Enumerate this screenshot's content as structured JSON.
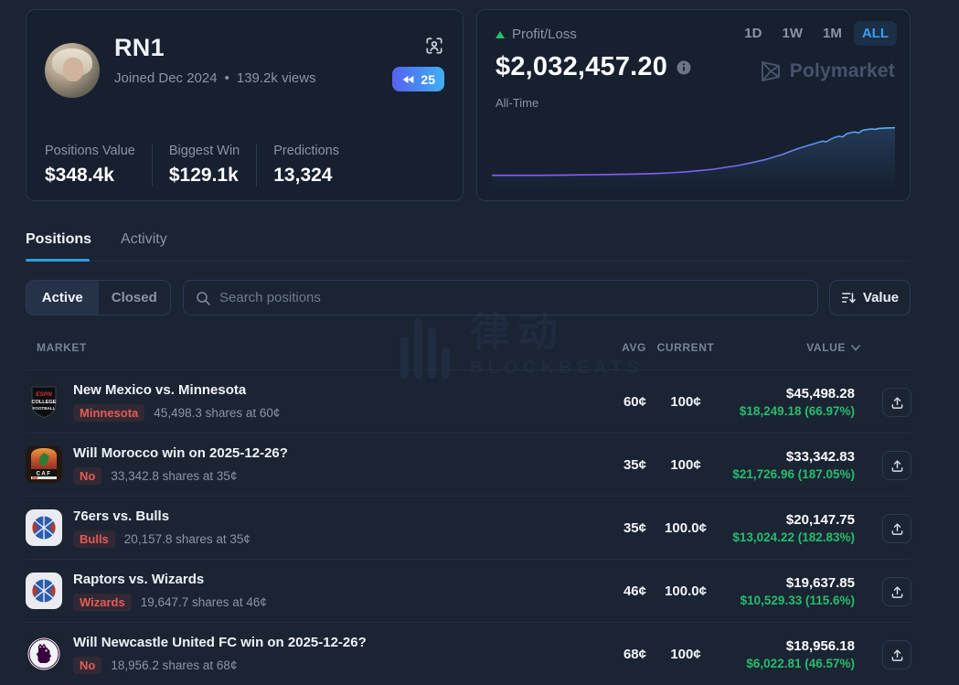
{
  "profile": {
    "name": "RN1",
    "joined": "Joined Dec 2024",
    "separator": "•",
    "views": "139.2k views",
    "badge_count": "25",
    "stats": [
      {
        "label": "Positions Value",
        "value": "$348.4k"
      },
      {
        "label": "Biggest Win",
        "value": "$129.1k"
      },
      {
        "label": "Predictions",
        "value": "13,324"
      }
    ]
  },
  "pnl": {
    "label": "Profit/Loss",
    "amount": "$2,032,457.20",
    "period_label": "All-Time",
    "ranges": [
      "1D",
      "1W",
      "1M",
      "ALL"
    ],
    "active_range": "ALL",
    "brand": "Polymarket"
  },
  "chart_data": {
    "type": "line",
    "title": "Profit/Loss All-Time",
    "xlabel": "",
    "ylabel": "",
    "axes_hidden": true,
    "end_value": "$2,032,457.20",
    "line_gradient": [
      "#8b5cf6",
      "#55b4f0"
    ],
    "points": [
      [
        0,
        47
      ],
      [
        6,
        47
      ],
      [
        12,
        47
      ],
      [
        18,
        46.8
      ],
      [
        24,
        46.6
      ],
      [
        30,
        46.3
      ],
      [
        36,
        46
      ],
      [
        40,
        45.6
      ],
      [
        44,
        45
      ],
      [
        48,
        44.2
      ],
      [
        52,
        43
      ],
      [
        55,
        42
      ],
      [
        58,
        40.5
      ],
      [
        61,
        39
      ],
      [
        64,
        37
      ],
      [
        66,
        35.5
      ],
      [
        68,
        34
      ],
      [
        70,
        32
      ],
      [
        72,
        30
      ],
      [
        74,
        27.5
      ],
      [
        76,
        25
      ],
      [
        78,
        23
      ],
      [
        80,
        21
      ],
      [
        81,
        20
      ],
      [
        82,
        19
      ],
      [
        83,
        19.5
      ],
      [
        84,
        17.5
      ],
      [
        85,
        16
      ],
      [
        86,
        15
      ],
      [
        87,
        15.5
      ],
      [
        88,
        13
      ],
      [
        89,
        12
      ],
      [
        90,
        11.5
      ],
      [
        91,
        12.2
      ],
      [
        92,
        10
      ],
      [
        93,
        9.5
      ],
      [
        94,
        9
      ],
      [
        95,
        9.3
      ],
      [
        96,
        8.6
      ],
      [
        97,
        8.4
      ],
      [
        98,
        8.2
      ],
      [
        99,
        8.1
      ],
      [
        100,
        8
      ]
    ]
  },
  "tabs": {
    "positions": "Positions",
    "activity": "Activity"
  },
  "filters": {
    "active": "Active",
    "closed": "Closed",
    "search_placeholder": "Search positions",
    "sort_label": "Value"
  },
  "table": {
    "headers": {
      "market": "MARKET",
      "avg": "AVG",
      "current": "CURRENT",
      "value": "VALUE"
    }
  },
  "watermark": {
    "cjk": "律动",
    "latin": "BLOCKBEATS"
  },
  "icon_art": {
    "espn": {
      "line1": "ESPN",
      "line2": "COLLEGE",
      "line3": "FOOTBALL"
    },
    "caf": {
      "label": "CAF"
    }
  },
  "rows": [
    {
      "icon": "espn-college-football",
      "title": "New Mexico vs. Minnesota",
      "badge": "Minnesota",
      "shares": "45,498.3 shares at 60¢",
      "avg": "60¢",
      "current": "100¢",
      "value": "$45,498.28",
      "gain": "$18,249.18 (66.97%)"
    },
    {
      "icon": "caf-africa-cup",
      "title": "Will Morocco win on 2025-12-26?",
      "badge": "No",
      "shares": "33,342.8 shares at 35¢",
      "avg": "35¢",
      "current": "100¢",
      "value": "$33,342.83",
      "gain": "$21,726.96 (187.05%)"
    },
    {
      "icon": "nba-basketball",
      "title": "76ers vs. Bulls",
      "badge": "Bulls",
      "shares": "20,157.8 shares at 35¢",
      "avg": "35¢",
      "current": "100.0¢",
      "value": "$20,147.75",
      "gain": "$13,024.22 (182.83%)"
    },
    {
      "icon": "nba-basketball",
      "title": "Raptors vs. Wizards",
      "badge": "Wizards",
      "shares": "19,647.7 shares at 46¢",
      "avg": "46¢",
      "current": "100.0¢",
      "value": "$19,637.85",
      "gain": "$10,529.33 (115.6%)"
    },
    {
      "icon": "premier-league",
      "title": "Will Newcastle United FC win on 2025-12-26?",
      "badge": "No",
      "shares": "18,956.2 shares at 68¢",
      "avg": "68¢",
      "current": "100¢",
      "value": "$18,956.18",
      "gain": "$6,022.81 (46.57%)"
    }
  ],
  "colors": {
    "background": "#1b2433",
    "card": "#16202f",
    "border": "#28374b",
    "accent_blue": "#3d9df2",
    "gain_green": "#26bd6e",
    "loss_red": "#e25c55",
    "muted_text": "#8a94a6",
    "badge_gradient": [
      "#5560ef",
      "#3fb0f4"
    ]
  }
}
